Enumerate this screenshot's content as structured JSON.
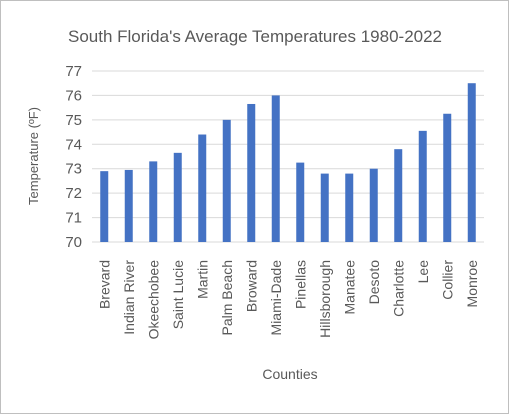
{
  "chart_data": {
    "type": "bar",
    "title": "South Florida's Average Temperatures 1980-2022",
    "xlabel": "Counties",
    "ylabel": "Temperature (ºF)",
    "ylim": [
      70,
      77
    ],
    "yticks": [
      70,
      71,
      72,
      73,
      74,
      75,
      76,
      77
    ],
    "grid": true,
    "legend": "none",
    "bar_color": "#4472c4",
    "categories": [
      "Brevard",
      "Indian River",
      "Okeechobee",
      "Saint Lucie",
      "Martin",
      "Palm Beach",
      "Broward",
      "Miami-Dade",
      "Pinellas",
      "Hillsborough",
      "Manatee",
      "Desoto",
      "Charlotte",
      "Lee",
      "Collier",
      "Monroe"
    ],
    "values": [
      72.9,
      72.95,
      73.3,
      73.65,
      74.4,
      75.0,
      75.65,
      76.0,
      73.25,
      72.8,
      72.8,
      73.0,
      73.8,
      74.55,
      75.25,
      76.5
    ]
  }
}
